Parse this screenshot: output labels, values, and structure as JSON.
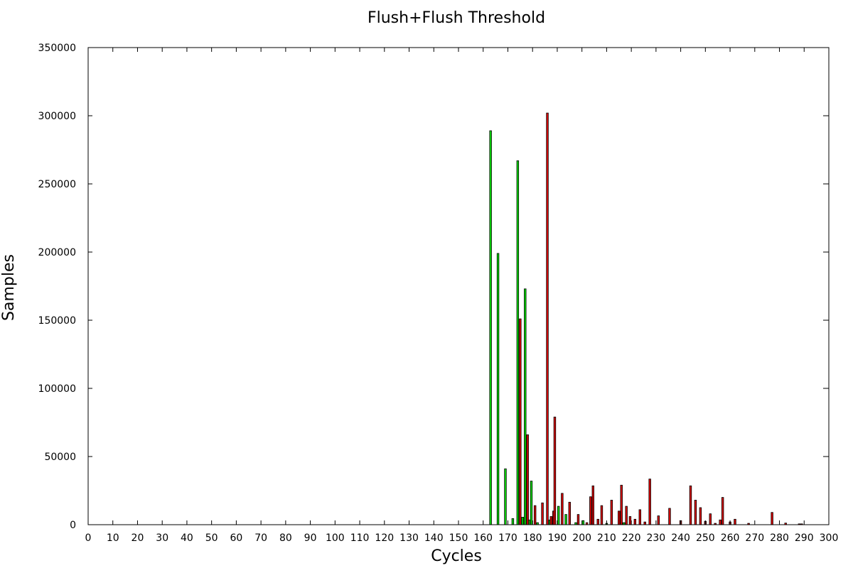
{
  "chart_data": {
    "type": "bar",
    "title": "Flush+Flush Threshold",
    "xlabel": "Cycles",
    "ylabel": "Samples",
    "xlim": [
      0,
      300
    ],
    "ylim": [
      0,
      350000
    ],
    "xticks": [
      0,
      10,
      20,
      30,
      40,
      50,
      60,
      70,
      80,
      90,
      100,
      110,
      120,
      130,
      140,
      150,
      160,
      170,
      180,
      190,
      200,
      210,
      220,
      230,
      240,
      250,
      260,
      270,
      280,
      290,
      300
    ],
    "yticks": [
      0,
      50000,
      100000,
      150000,
      200000,
      250000,
      300000,
      350000
    ],
    "grid": false,
    "legend": "none",
    "series": [
      {
        "color": "#00dd00",
        "points": [
          [
            163,
            289000
          ],
          [
            166,
            199000
          ],
          [
            169,
            41000
          ],
          [
            172,
            4500
          ],
          [
            174,
            267000
          ],
          [
            176,
            5500
          ],
          [
            177,
            173000
          ],
          [
            178.5,
            3500
          ],
          [
            179.5,
            32000
          ],
          [
            182,
            1500
          ],
          [
            187,
            3500
          ],
          [
            190.5,
            13500
          ],
          [
            193.5,
            7500
          ],
          [
            197.5,
            1500
          ],
          [
            200.5,
            3000
          ],
          [
            210,
            1000
          ],
          [
            217,
            1500
          ]
        ]
      },
      {
        "color": "#dd0000",
        "points": [
          [
            175,
            151000
          ],
          [
            178,
            66000
          ],
          [
            181,
            14000
          ],
          [
            184,
            16000
          ],
          [
            186,
            302000
          ],
          [
            187.5,
            6000
          ],
          [
            188.5,
            10000
          ],
          [
            189,
            79000
          ],
          [
            192,
            23000
          ],
          [
            195,
            16500
          ],
          [
            198.5,
            7500
          ],
          [
            202,
            1500
          ],
          [
            203.5,
            20500
          ],
          [
            204.5,
            28500
          ],
          [
            206.5,
            4000
          ],
          [
            208,
            14000
          ],
          [
            212,
            18000
          ],
          [
            215,
            10000
          ],
          [
            216,
            29000
          ],
          [
            218,
            13500
          ],
          [
            219.5,
            6000
          ],
          [
            221.5,
            4000
          ],
          [
            223.5,
            11000
          ],
          [
            225.5,
            2000
          ],
          [
            227.5,
            33500
          ],
          [
            231,
            6500
          ],
          [
            235.5,
            12000
          ],
          [
            240,
            3000
          ],
          [
            244,
            28500
          ],
          [
            246,
            18000
          ],
          [
            248,
            12500
          ],
          [
            250,
            2500
          ],
          [
            252,
            8000
          ],
          [
            254,
            1000
          ],
          [
            256,
            3500
          ],
          [
            257,
            20000
          ],
          [
            260,
            2000
          ],
          [
            262,
            4000
          ],
          [
            267.5,
            1000
          ],
          [
            277,
            9000
          ],
          [
            282.5,
            1200
          ],
          [
            288,
            600
          ],
          [
            289,
            600
          ]
        ]
      }
    ]
  }
}
